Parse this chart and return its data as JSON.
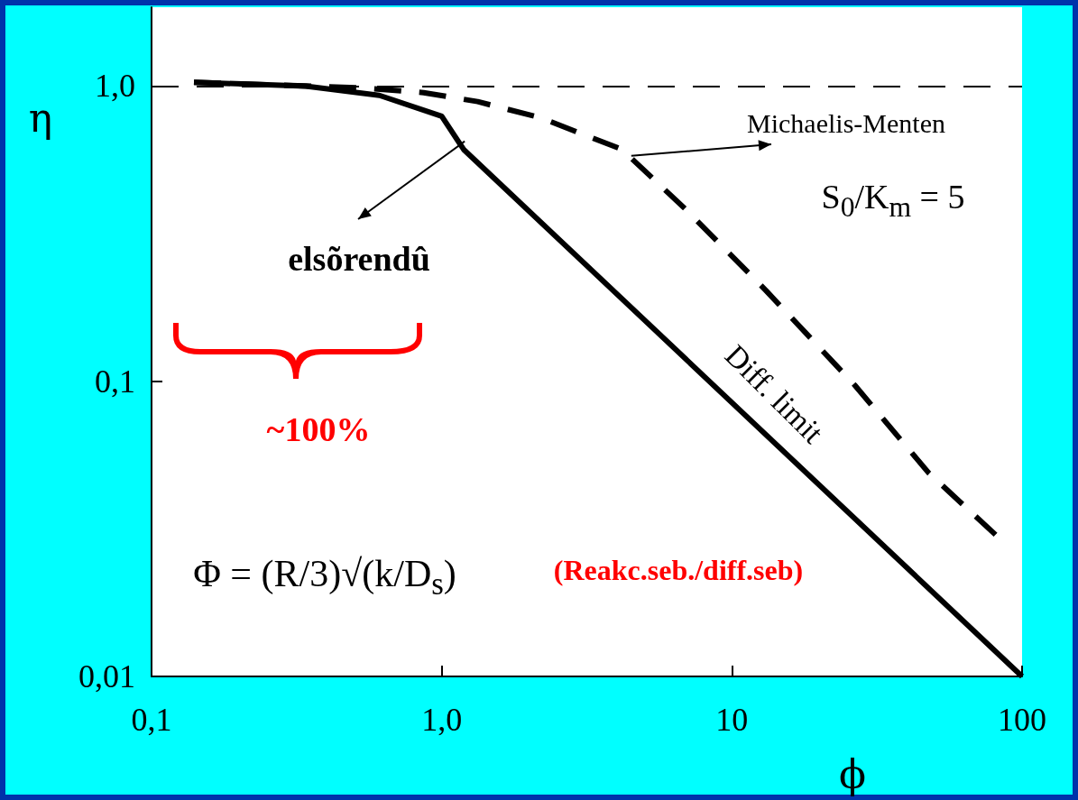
{
  "chart_data": {
    "type": "line",
    "xlabel": "ϕ",
    "ylabel": "η",
    "log": "xy",
    "xlim": [
      0.1,
      100
    ],
    "xticks": [
      {
        "value": 0.1,
        "label": "0,1"
      },
      {
        "value": 1,
        "label": "1,0"
      },
      10,
      100
    ],
    "ylim": [
      0.01,
      1.85
    ],
    "yticks": [
      {
        "value": 0.01,
        "label": "0,01"
      },
      {
        "value": 0.1,
        "label": "0,1"
      },
      {
        "value": 1,
        "label": "1,0"
      }
    ],
    "grid": false,
    "marker": "none",
    "series": [
      {
        "color": "#000000",
        "line_style": "solid",
        "x": [
          0.14,
          0.34,
          0.61,
          1.0,
          1.19,
          100
        ],
        "values": [
          1.03,
          1.0,
          0.93,
          0.79,
          0.61,
          0.01
        ]
      },
      {
        "color": "#000000",
        "line_style": "dashed",
        "x": [
          0.14,
          0.525,
          0.866,
          1.33,
          2.2,
          4.18,
          6.9,
          13.1,
          26.5,
          47.6,
          81.6
        ],
        "values": [
          1.03,
          0.986,
          0.95,
          0.886,
          0.78,
          0.61,
          0.384,
          0.203,
          0.097,
          0.049,
          0.03
        ]
      }
    ],
    "ref_lines": [
      {
        "axis": "y",
        "value": 1,
        "color": "#000000",
        "line_style": "dashed"
      }
    ],
    "annotations": [
      {
        "text": "Michaelis-Menten",
        "x": 4.5,
        "y": 0.58
      },
      "S$_{0}$/K$_{m}$ = 5",
      {
        "text": "elsõrendû",
        "x": 1.2,
        "y": 0.65
      },
      "Diff. limit",
      "~100%",
      "Φ = (R/3)√(k/D$_{s}$)",
      "(Reakc.seb./diff.seb)"
    ]
  }
}
